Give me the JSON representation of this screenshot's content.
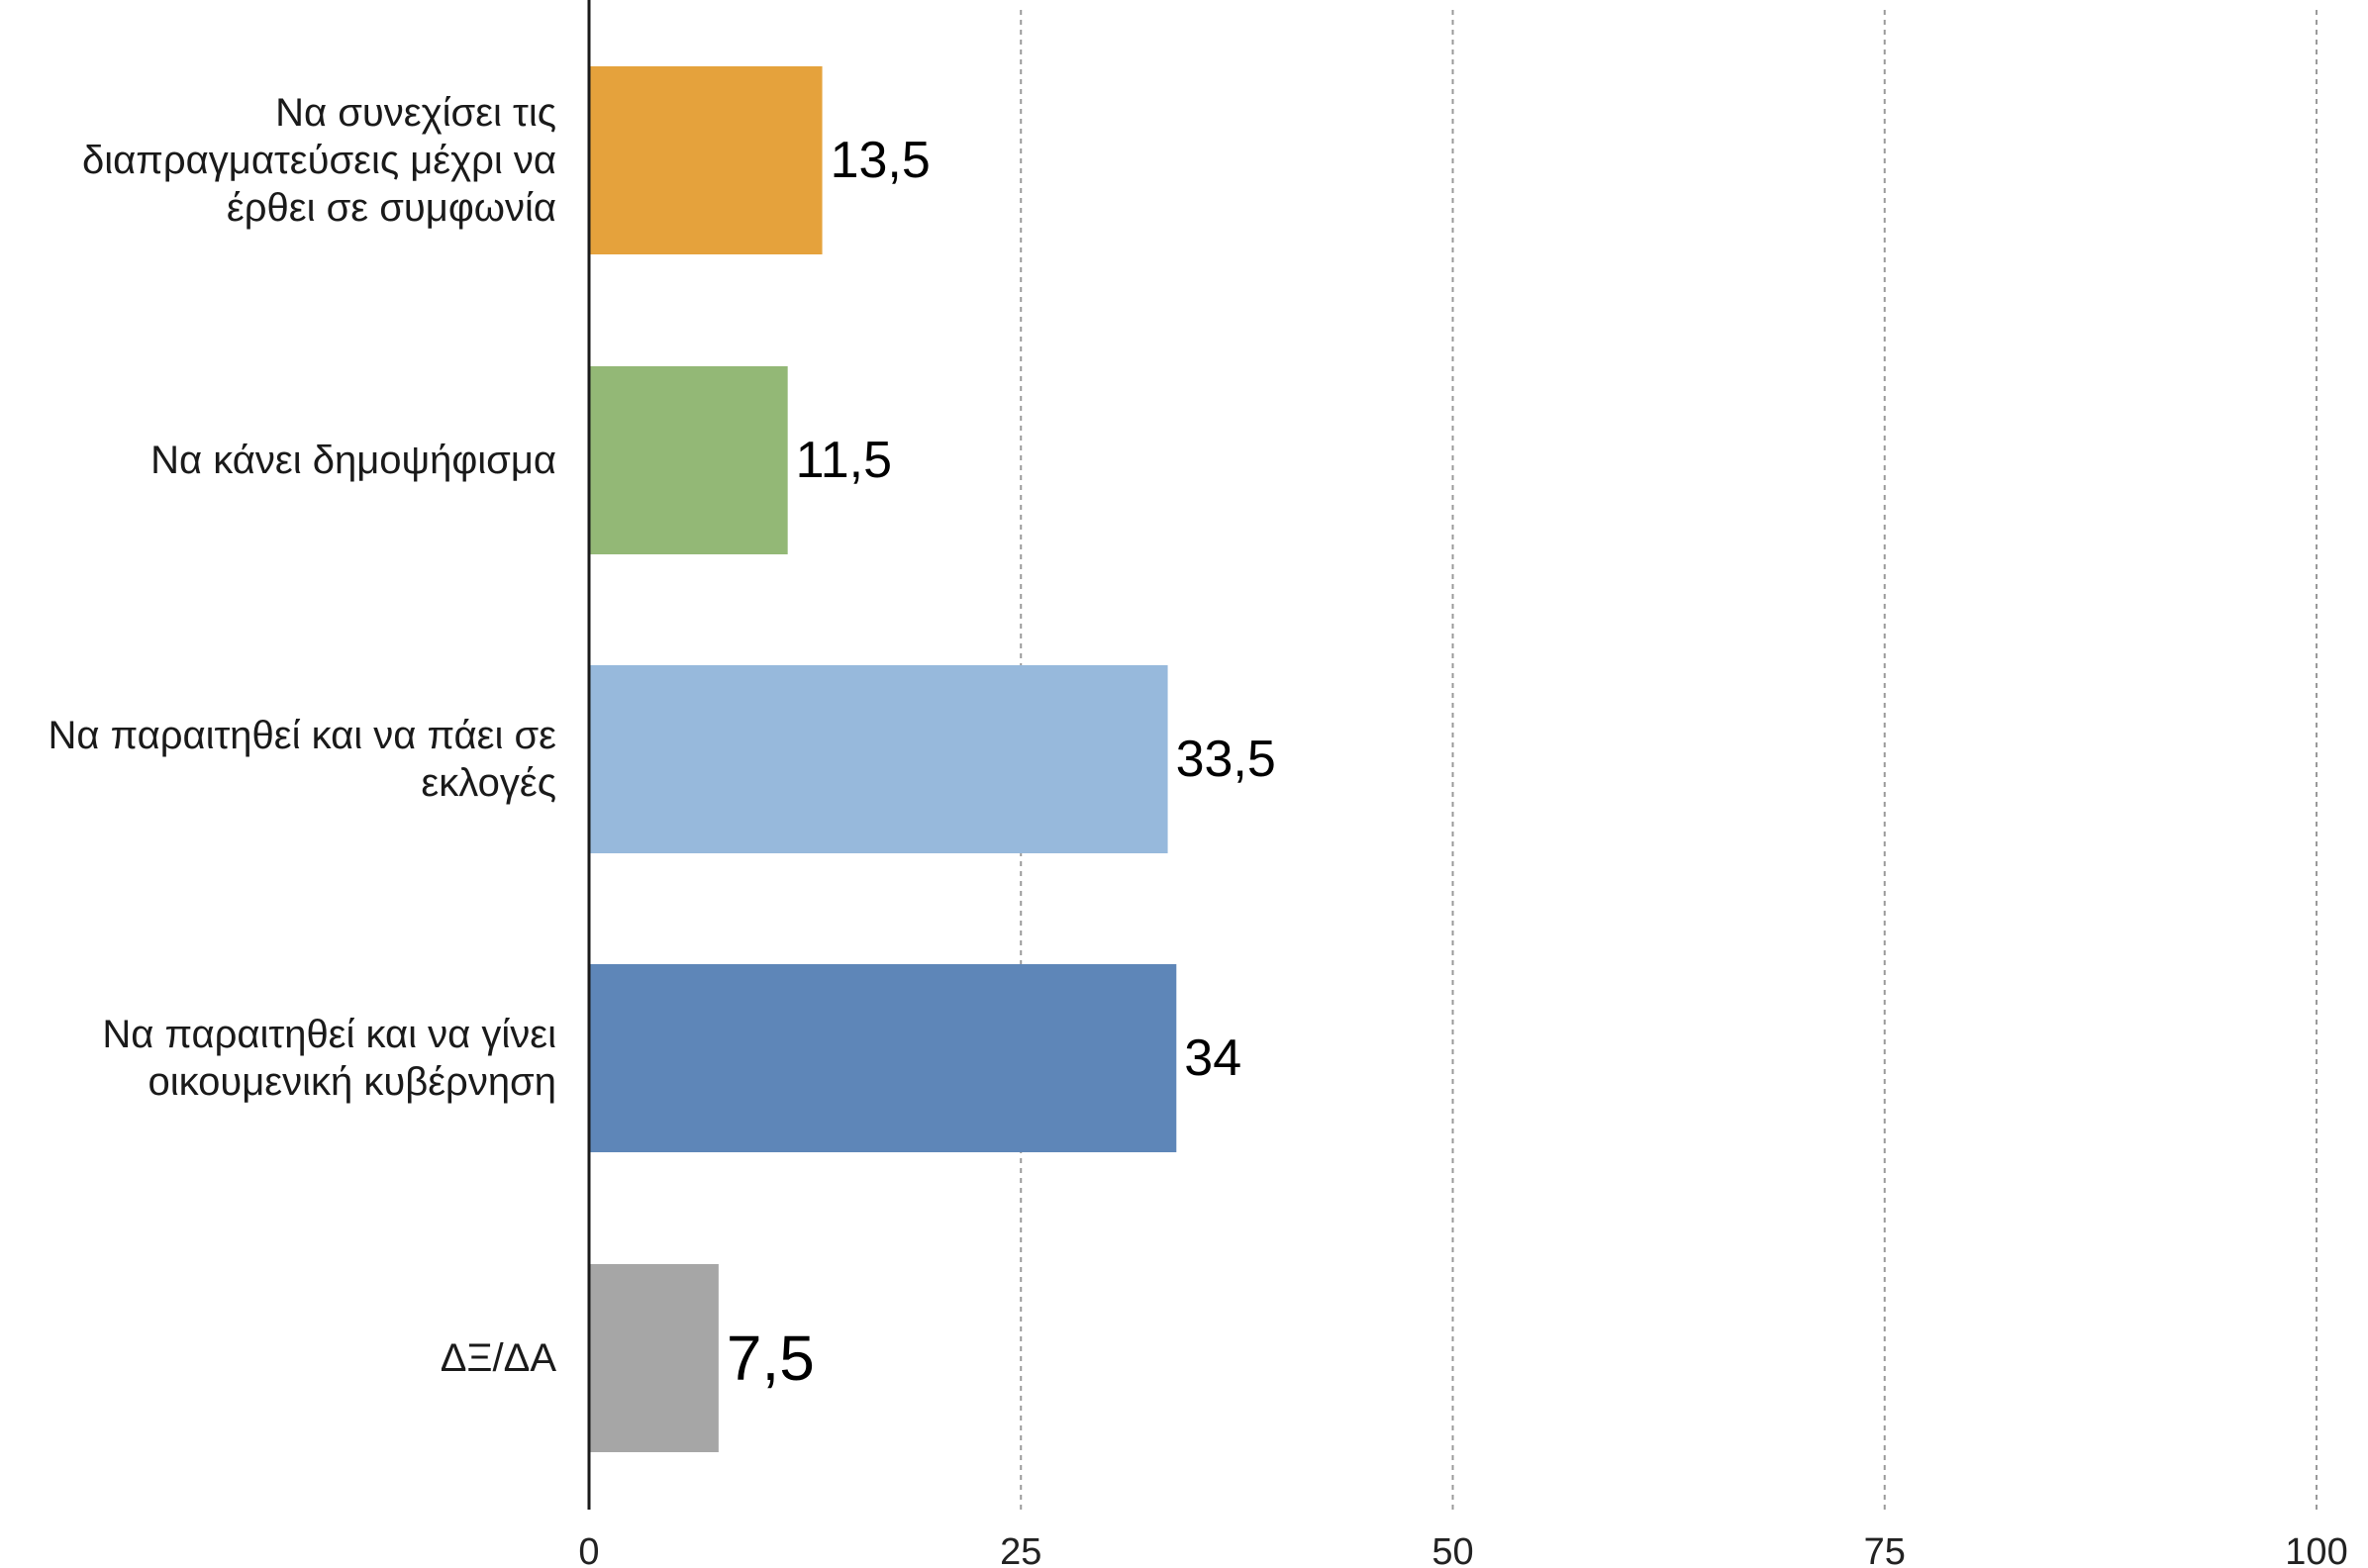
{
  "chart_data": {
    "type": "bar",
    "orientation": "horizontal",
    "categories": [
      "Να συνεχίσει τις διαπραγματεύσεις μέχρι να έρθει σε συμφωνία",
      "Να κάνει δημοψήφισμα",
      "Να παραιτηθεί και να πάει σε εκλογές",
      "Να παραιτηθεί και να γίνει οικουμενική κυβέρνηση",
      "ΔΞ/ΔΑ"
    ],
    "category_lines": [
      [
        "Να συνεχίσει τις",
        "διαπραγματεύσεις μέχρι να",
        "έρθει σε συμφωνία"
      ],
      [
        "Να κάνει δημοψήφισμα"
      ],
      [
        "Να παραιτηθεί και να πάει σε",
        "εκλογές"
      ],
      [
        "Να παραιτηθεί και να γίνει",
        "οικουμενική κυβέρνηση"
      ],
      [
        "ΔΞ/ΔΑ"
      ]
    ],
    "values": [
      13.5,
      11.5,
      33.5,
      34,
      7.5
    ],
    "value_labels": [
      "13,5",
      "11,5",
      "33,5",
      "34",
      "7,5"
    ],
    "colors": [
      "#E5A23C",
      "#93B876",
      "#97B9DC",
      "#5E86B8",
      "#A6A6A6"
    ],
    "xlim": [
      0,
      100
    ],
    "xticks": [
      0,
      25,
      50,
      75,
      100
    ],
    "xtick_labels": [
      "0",
      "25",
      "50",
      "75",
      "100"
    ],
    "grid": "vertical dashed",
    "title": "",
    "xlabel": "",
    "ylabel": ""
  }
}
